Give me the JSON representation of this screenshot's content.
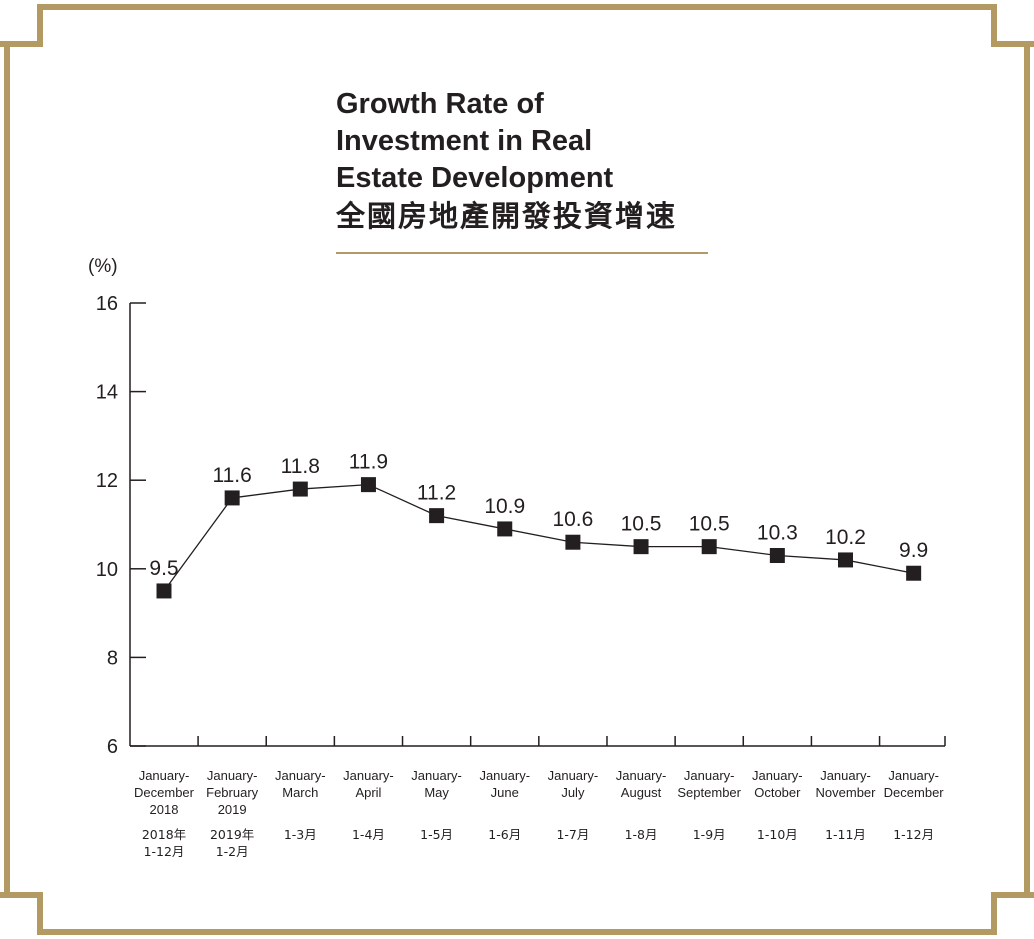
{
  "chart_data": {
    "type": "line",
    "title": "Growth Rate of Investment in Real Estate Development",
    "title_lines": [
      "Growth Rate of",
      "Investment in Real",
      "Estate Development"
    ],
    "title_cn": "全國房地產開發投資增速",
    "ylabel": "(%)",
    "ylim": [
      6,
      16
    ],
    "yticks": [
      6,
      8,
      10,
      12,
      14,
      16
    ],
    "grid": false,
    "legend": "none",
    "categories": [
      "January-December 2018",
      "January-February 2019",
      "January-March",
      "January-April",
      "January-May",
      "January-June",
      "January-July",
      "January-August",
      "January-September",
      "January-October",
      "January-November",
      "January-December"
    ],
    "category_lines": [
      [
        "January-",
        "December",
        "2018"
      ],
      [
        "January-",
        "February",
        "2019"
      ],
      [
        "January-",
        "March"
      ],
      [
        "January-",
        "April"
      ],
      [
        "January-",
        "May"
      ],
      [
        "January-",
        "June"
      ],
      [
        "January-",
        "July"
      ],
      [
        "January-",
        "August"
      ],
      [
        "January-",
        "September"
      ],
      [
        "January-",
        "October"
      ],
      [
        "January-",
        "November"
      ],
      [
        "January-",
        "December"
      ]
    ],
    "category_cn_lines": [
      [
        "2018年",
        "1-12月"
      ],
      [
        "2019年",
        "1-2月"
      ],
      [
        "1-3月"
      ],
      [
        "1-4月"
      ],
      [
        "1-5月"
      ],
      [
        "1-6月"
      ],
      [
        "1-7月"
      ],
      [
        "1-8月"
      ],
      [
        "1-9月"
      ],
      [
        "1-10月"
      ],
      [
        "1-11月"
      ],
      [
        "1-12月"
      ]
    ],
    "values": [
      9.5,
      11.6,
      11.8,
      11.9,
      11.2,
      10.9,
      10.6,
      10.5,
      10.5,
      10.3,
      10.2,
      9.9
    ],
    "value_labels": [
      "9.5",
      "11.6",
      "11.8",
      "11.9",
      "11.2",
      "10.9",
      "10.6",
      "10.5",
      "10.5",
      "10.3",
      "10.2",
      "9.9"
    ]
  },
  "colors": {
    "frame": "#b39a62",
    "text": "#231f20",
    "line": "#231f20",
    "marker": "#231f20"
  }
}
